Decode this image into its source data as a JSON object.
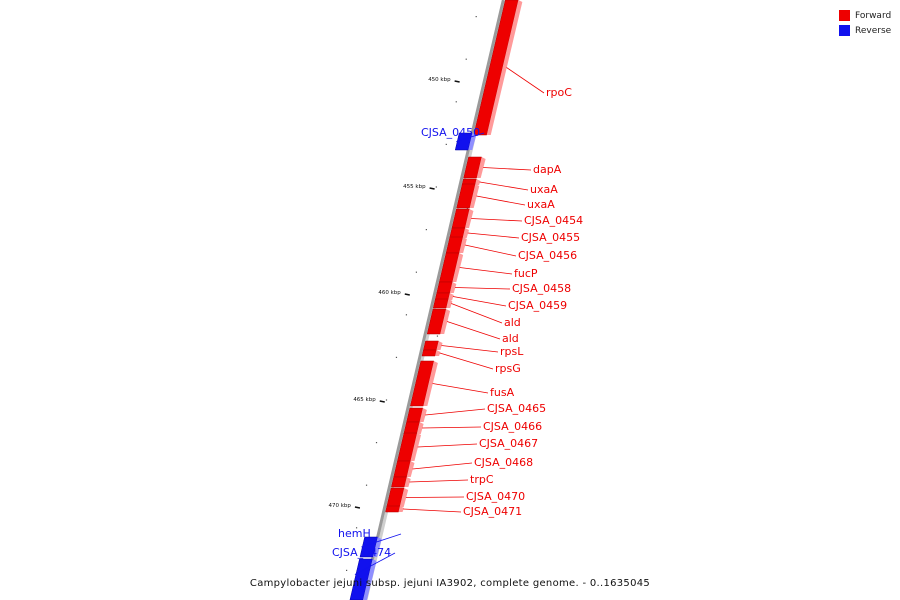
{
  "caption": "Campylobacter jejuni subsp. jejuni IA3902, complete genome. - 0..1635045",
  "legend": [
    {
      "label": "Forward",
      "color": "#ee0000"
    },
    {
      "label": "Reverse",
      "color": "#1111ee"
    }
  ],
  "colors": {
    "forward": "#ee0000",
    "reverse": "#1111ee",
    "backbone": "#9a9a9a"
  },
  "ticks": [
    "450 kbp",
    "455 kbp",
    "460 kbp",
    "465 kbp",
    "470 kbp"
  ],
  "genes": [
    {
      "name": "rpoC",
      "strand": "forward"
    },
    {
      "name": "CJSA_0450",
      "strand": "reverse"
    },
    {
      "name": "dapA",
      "strand": "forward"
    },
    {
      "name": "uxaA",
      "strand": "forward"
    },
    {
      "name": "uxaA",
      "strand": "forward"
    },
    {
      "name": "CJSA_0454",
      "strand": "forward"
    },
    {
      "name": "CJSA_0455",
      "strand": "forward"
    },
    {
      "name": "CJSA_0456",
      "strand": "forward"
    },
    {
      "name": "fucP",
      "strand": "forward"
    },
    {
      "name": "CJSA_0458",
      "strand": "forward"
    },
    {
      "name": "CJSA_0459",
      "strand": "forward"
    },
    {
      "name": "ald",
      "strand": "forward"
    },
    {
      "name": "ald",
      "strand": "forward"
    },
    {
      "name": "rpsL",
      "strand": "forward"
    },
    {
      "name": "rpsG",
      "strand": "forward"
    },
    {
      "name": "fusA",
      "strand": "forward"
    },
    {
      "name": "CJSA_0465",
      "strand": "forward"
    },
    {
      "name": "CJSA_0466",
      "strand": "forward"
    },
    {
      "name": "CJSA_0467",
      "strand": "forward"
    },
    {
      "name": "CJSA_0468",
      "strand": "forward"
    },
    {
      "name": "trpC",
      "strand": "forward"
    },
    {
      "name": "CJSA_0470",
      "strand": "forward"
    },
    {
      "name": "CJSA_0471",
      "strand": "forward"
    },
    {
      "name": "hemH",
      "strand": "reverse"
    },
    {
      "name": "CJSA_0474",
      "strand": "reverse"
    }
  ]
}
